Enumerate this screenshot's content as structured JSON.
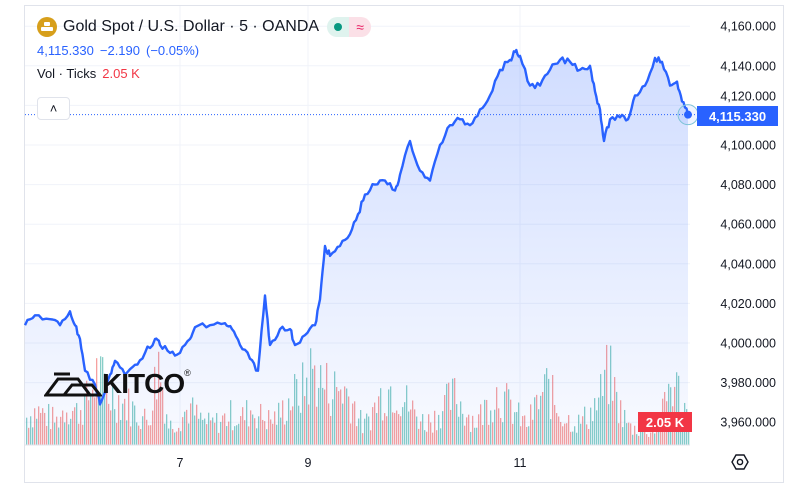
{
  "header": {
    "title": "Gold Spot / U.S. Dollar · 5 · OANDA",
    "last_price": "4,115.330",
    "change": "−2.190",
    "change_pct": "(−0.05%)",
    "vol_label": "Vol · Ticks",
    "vol_value": "2.05 K",
    "collapse_icon": "chevron-up-icon"
  },
  "logo": {
    "text": "KITCO",
    "mark": "®"
  },
  "price_tag": "4,115.330",
  "volume_tag": "2.05 K",
  "colors": {
    "line": "#2962ff",
    "up": "#26a69a",
    "down": "#ef5350",
    "tag_blue": "#2962ff",
    "tag_red": "#f23645"
  },
  "chart_data": {
    "type": "area",
    "title": "Gold Spot / U.S. Dollar · 5 · OANDA",
    "xlabel": "",
    "ylabel": "",
    "ylim": [
      3960,
      4170
    ],
    "xlim": [
      0,
      134
    ],
    "y_ticks": [
      "4,160.000",
      "4,140.000",
      "4,120.000",
      "4,100.000",
      "4,080.000",
      "4,060.000",
      "4,040.000",
      "4,020.000",
      "4,000.000",
      "3,980.000",
      "3,960.000"
    ],
    "y_tick_values": [
      4160,
      4140,
      4120,
      4100,
      4080,
      4060,
      4040,
      4020,
      4000,
      3980,
      3960
    ],
    "x_ticks": [
      {
        "label": "7",
        "x": 31
      },
      {
        "label": "9",
        "x": 56.6
      },
      {
        "label": "11",
        "x": 99
      }
    ],
    "price": [
      [
        0,
        4009
      ],
      [
        2,
        4014
      ],
      [
        5,
        4012
      ],
      [
        7,
        4009
      ],
      [
        9,
        4016
      ],
      [
        10,
        4009
      ],
      [
        11,
        4002
      ],
      [
        12,
        3986
      ],
      [
        14,
        3979
      ],
      [
        15,
        3969
      ],
      [
        17,
        3984
      ],
      [
        18,
        3991
      ],
      [
        20,
        3984
      ],
      [
        22,
        3989
      ],
      [
        24,
        3995
      ],
      [
        26,
        4002
      ],
      [
        27,
        3999
      ],
      [
        29,
        3995
      ],
      [
        31,
        3995
      ],
      [
        33,
        4002
      ],
      [
        34,
        4008
      ],
      [
        37,
        4009
      ],
      [
        40,
        4010
      ],
      [
        41.4,
        4007
      ],
      [
        43,
        3999
      ],
      [
        45,
        3992
      ],
      [
        46.6,
        3986
      ],
      [
        48,
        4024
      ],
      [
        49,
        3999
      ],
      [
        51,
        4007
      ],
      [
        53,
        4007
      ],
      [
        54,
        3999
      ],
      [
        56,
        4004
      ],
      [
        58,
        4009
      ],
      [
        59,
        4022
      ],
      [
        60,
        4049
      ],
      [
        61,
        4044
      ],
      [
        63,
        4049
      ],
      [
        65,
        4055
      ],
      [
        66.6,
        4065
      ],
      [
        68,
        4075
      ],
      [
        70,
        4080
      ],
      [
        72,
        4082
      ],
      [
        74,
        4077
      ],
      [
        75,
        4085
      ],
      [
        77,
        4102
      ],
      [
        79,
        4087
      ],
      [
        81,
        4082
      ],
      [
        83,
        4100
      ],
      [
        85,
        4110
      ],
      [
        87,
        4113
      ],
      [
        89,
        4110
      ],
      [
        91,
        4118
      ],
      [
        93,
        4125
      ],
      [
        95,
        4138
      ],
      [
        97,
        4143
      ],
      [
        98,
        4147
      ],
      [
        99,
        4145
      ],
      [
        101,
        4130
      ],
      [
        103,
        4130
      ],
      [
        105,
        4138
      ],
      [
        107,
        4143
      ],
      [
        109,
        4142
      ],
      [
        111,
        4138
      ],
      [
        113,
        4140
      ],
      [
        114,
        4127
      ],
      [
        115,
        4118
      ],
      [
        115.8,
        4102
      ],
      [
        117,
        4113
      ],
      [
        119,
        4114
      ],
      [
        120.6,
        4113
      ],
      [
        122,
        4125
      ],
      [
        124,
        4130
      ],
      [
        126,
        4144
      ],
      [
        127.4,
        4142
      ],
      [
        129,
        4130
      ],
      [
        130.4,
        4132
      ],
      [
        131.4,
        4122
      ],
      [
        132.6,
        4115.33
      ]
    ],
    "volume_unit": "K",
    "volume": [
      3.2,
      4.1,
      3.5,
      2.8,
      4.6,
      3.9,
      5.2,
      8.4,
      6.1,
      5.5,
      4.8,
      3.6,
      2.9,
      9.8,
      2.2,
      3.1,
      4.4,
      3.0,
      2.5,
      2.8,
      3.6,
      3.1,
      4.2,
      3.4,
      2.9,
      3.8,
      5.6,
      6.4,
      8.9,
      7.2,
      6.5,
      6.8,
      5.1,
      2.0,
      4.2,
      6.3,
      7.0,
      5.4,
      3.8,
      2.6,
      3.3,
      4.7,
      5.8,
      3.9,
      2.7,
      4.5,
      6.2,
      5.0,
      3.6,
      2.4,
      4.8,
      6.9,
      4.1,
      3.0,
      2.6,
      3.5,
      5.2,
      8.6,
      4.4,
      2.1,
      1.8,
      1.6,
      2.3,
      7.5,
      6.0,
      2.05
    ],
    "current_price": 4115.33
  }
}
